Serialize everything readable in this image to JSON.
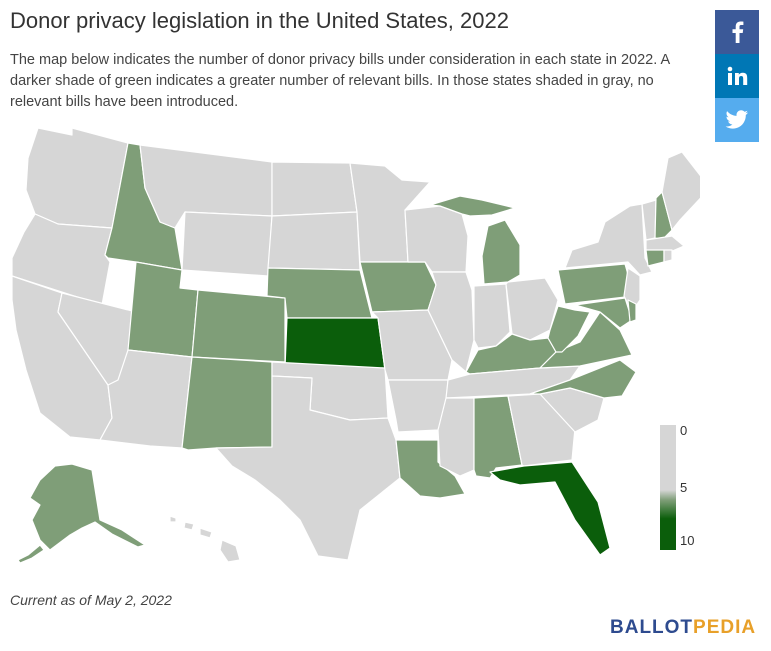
{
  "title": "Donor privacy legislation in the United States, 2022",
  "subtitle": "The map below indicates the number of donor privacy bills under consideration in each state in 2022. A darker shade of green indicates a greater number of relevant bills. In those states shaded in gray, no relevant bills have been introduced.",
  "share": {
    "facebook_icon": "facebook-icon",
    "linkedin_icon": "linkedin-icon",
    "twitter_icon": "twitter-icon",
    "colors": {
      "facebook": "#3b5998",
      "linkedin": "#0077b5",
      "twitter": "#55acee"
    }
  },
  "legend": {
    "min_label": "0",
    "mid_label": "5",
    "max_label": "10",
    "colors": {
      "none": "#d6d6d6",
      "low": "#7f9e78",
      "high": "#0b5e0b"
    }
  },
  "footnote": "Current as of May 2, 2022",
  "brand": {
    "part1": "BALLOT",
    "part2": "PEDIA"
  },
  "states": {
    "shaded_light_green": [
      "Idaho",
      "Utah",
      "Colorado",
      "New Mexico",
      "Nebraska",
      "Iowa",
      "Michigan",
      "Pennsylvania",
      "Kentucky",
      "West Virginia",
      "North Carolina",
      "Alabama",
      "Louisiana",
      "Alaska",
      "New Hampshire",
      "Connecticut",
      "Maryland",
      "Delaware",
      "Virginia"
    ],
    "shaded_dark_green": [
      "Kansas",
      "Florida"
    ]
  }
}
